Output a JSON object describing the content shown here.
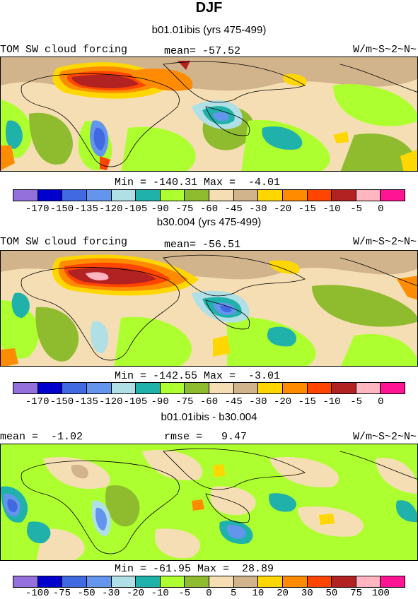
{
  "title": "DJF",
  "panels": [
    {
      "subtitle": "b01.01ibis (yrs 475-499)",
      "left_label": "TOM SW cloud forcing",
      "center_label": "mean= -57.52",
      "units": "W/m~S~2~N~",
      "minmax": "Min = -140.31 Max =  -4.01",
      "colorbar_labels": [
        "-170",
        "-150",
        "-135",
        "-120",
        "-105",
        "-90",
        "-75",
        "-60",
        "-45",
        "-30",
        "-20",
        "-15",
        "-10",
        "-5",
        "0"
      ]
    },
    {
      "subtitle": "b30.004 (yrs 475-499)",
      "left_label": "TOM SW cloud forcing",
      "center_label": "mean= -56.51",
      "units": "W/m~S~2~N~",
      "minmax": "Min = -142.55 Max =  -3.01",
      "colorbar_labels": [
        "-170",
        "-150",
        "-135",
        "-120",
        "-105",
        "-90",
        "-75",
        "-60",
        "-45",
        "-30",
        "-20",
        "-15",
        "-10",
        "-5",
        "0"
      ]
    },
    {
      "subtitle": "b01.01ibis - b30.004",
      "left_label": "mean =  -1.02",
      "center_label": "rmse =   9.47",
      "units": "W/m~S~2~N~",
      "minmax": "Min = -61.95 Max =  28.89",
      "colorbar_labels": [
        "-100",
        "-75",
        "-50",
        "-30",
        "-20",
        "-10",
        "-5",
        "0",
        "5",
        "10",
        "20",
        "30",
        "50",
        "75",
        "100"
      ]
    }
  ],
  "colorbar_colors": [
    "#9370db",
    "#0000cd",
    "#4169e1",
    "#6495ed",
    "#b0e0e6",
    "#20b2aa",
    "#adff2f",
    "#8fbc2f",
    "#f5deb3",
    "#d2b48c",
    "#ffd700",
    "#ff8c00",
    "#ff4500",
    "#b22222",
    "#ffb6c1",
    "#ff1493"
  ]
}
